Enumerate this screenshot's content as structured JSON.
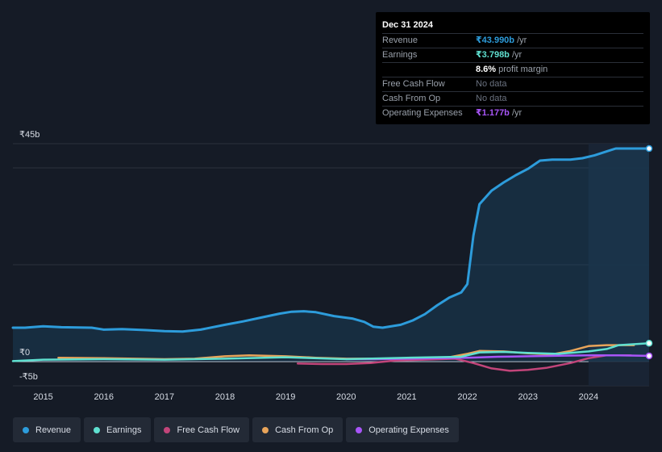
{
  "chart_data": {
    "type": "line",
    "currency_axis": {
      "top_label": "₹45b",
      "zero_label": "₹0",
      "bottom_label": "-₹5b",
      "ylim": [
        -5,
        45
      ]
    },
    "x_ticks": [
      "2015",
      "2016",
      "2017",
      "2018",
      "2019",
      "2020",
      "2021",
      "2022",
      "2023",
      "2024"
    ],
    "xlim": [
      2014.5,
      2025.0
    ],
    "forecast_start": 2024.0,
    "series": [
      {
        "name": "Revenue",
        "color": "#2d9cdb",
        "fill": true,
        "points": [
          [
            2014.5,
            7.0
          ],
          [
            2014.7,
            7.0
          ],
          [
            2015.0,
            7.3
          ],
          [
            2015.3,
            7.1
          ],
          [
            2015.8,
            7.0
          ],
          [
            2016.0,
            6.6
          ],
          [
            2016.3,
            6.7
          ],
          [
            2016.7,
            6.5
          ],
          [
            2017.0,
            6.3
          ],
          [
            2017.3,
            6.2
          ],
          [
            2017.6,
            6.6
          ],
          [
            2018.0,
            7.6
          ],
          [
            2018.3,
            8.3
          ],
          [
            2018.6,
            9.1
          ],
          [
            2018.9,
            9.9
          ],
          [
            2019.1,
            10.3
          ],
          [
            2019.3,
            10.4
          ],
          [
            2019.5,
            10.2
          ],
          [
            2019.8,
            9.4
          ],
          [
            2020.1,
            8.9
          ],
          [
            2020.3,
            8.2
          ],
          [
            2020.45,
            7.2
          ],
          [
            2020.6,
            7.0
          ],
          [
            2020.9,
            7.6
          ],
          [
            2021.1,
            8.5
          ],
          [
            2021.3,
            9.8
          ],
          [
            2021.5,
            11.6
          ],
          [
            2021.7,
            13.2
          ],
          [
            2021.9,
            14.3
          ],
          [
            2022.0,
            16.0
          ],
          [
            2022.1,
            26.0
          ],
          [
            2022.2,
            32.5
          ],
          [
            2022.4,
            35.3
          ],
          [
            2022.6,
            37.0
          ],
          [
            2022.8,
            38.5
          ],
          [
            2023.0,
            39.8
          ],
          [
            2023.2,
            41.5
          ],
          [
            2023.4,
            41.7
          ],
          [
            2023.7,
            41.7
          ],
          [
            2023.9,
            42.0
          ],
          [
            2024.1,
            42.6
          ],
          [
            2024.3,
            43.4
          ],
          [
            2024.45,
            44.0
          ],
          [
            2024.7,
            44.0
          ],
          [
            2025.0,
            44.0
          ]
        ],
        "end_value": 43.99
      },
      {
        "name": "Earnings",
        "color": "#5fe0d0",
        "fill": false,
        "points": [
          [
            2014.5,
            0.1
          ],
          [
            2015.0,
            0.4
          ],
          [
            2016.0,
            0.5
          ],
          [
            2017.0,
            0.4
          ],
          [
            2018.0,
            0.6
          ],
          [
            2019.0,
            0.9
          ],
          [
            2020.0,
            0.5
          ],
          [
            2021.0,
            0.8
          ],
          [
            2021.9,
            1.0
          ],
          [
            2022.2,
            1.9
          ],
          [
            2022.6,
            2.0
          ],
          [
            2023.0,
            1.8
          ],
          [
            2023.5,
            1.6
          ],
          [
            2024.0,
            2.1
          ],
          [
            2024.3,
            2.6
          ],
          [
            2024.5,
            3.4
          ],
          [
            2025.0,
            3.8
          ]
        ],
        "end_value": 3.798
      },
      {
        "name": "Free Cash Flow",
        "color": "#c2457a",
        "fill": false,
        "points": [
          [
            2019.2,
            -0.4
          ],
          [
            2019.6,
            -0.5
          ],
          [
            2020.0,
            -0.5
          ],
          [
            2020.4,
            -0.3
          ],
          [
            2020.8,
            0.2
          ],
          [
            2021.3,
            0.4
          ],
          [
            2021.8,
            0.6
          ],
          [
            2022.1,
            -0.3
          ],
          [
            2022.4,
            -1.4
          ],
          [
            2022.7,
            -1.9
          ],
          [
            2023.0,
            -1.7
          ],
          [
            2023.3,
            -1.3
          ],
          [
            2023.7,
            -0.3
          ],
          [
            2024.0,
            0.7
          ],
          [
            2024.3,
            1.3
          ],
          [
            2024.7,
            1.3
          ]
        ]
      },
      {
        "name": "Cash From Op",
        "color": "#e8a45a",
        "fill": false,
        "points": [
          [
            2015.25,
            0.8
          ],
          [
            2016.0,
            0.7
          ],
          [
            2017.0,
            0.5
          ],
          [
            2017.5,
            0.6
          ],
          [
            2018.0,
            1.1
          ],
          [
            2018.4,
            1.3
          ],
          [
            2019.0,
            1.1
          ],
          [
            2019.5,
            0.8
          ],
          [
            2020.0,
            0.6
          ],
          [
            2021.0,
            0.6
          ],
          [
            2021.7,
            0.9
          ],
          [
            2022.0,
            1.6
          ],
          [
            2022.2,
            2.2
          ],
          [
            2022.6,
            2.1
          ],
          [
            2023.0,
            1.7
          ],
          [
            2023.4,
            1.5
          ],
          [
            2023.7,
            2.2
          ],
          [
            2024.0,
            3.2
          ],
          [
            2024.3,
            3.4
          ],
          [
            2024.75,
            3.4
          ]
        ]
      },
      {
        "name": "Operating Expenses",
        "color": "#a855f7",
        "fill": false,
        "points": [
          [
            2020.0,
            0.5
          ],
          [
            2020.5,
            0.5
          ],
          [
            2021.0,
            0.6
          ],
          [
            2021.5,
            0.7
          ],
          [
            2022.0,
            0.8
          ],
          [
            2022.5,
            1.0
          ],
          [
            2023.0,
            1.1
          ],
          [
            2023.5,
            1.2
          ],
          [
            2024.0,
            1.3
          ],
          [
            2024.5,
            1.3
          ],
          [
            2025.0,
            1.18
          ]
        ],
        "end_value": 1.177
      }
    ]
  },
  "tooltip": {
    "date": "Dec 31 2024",
    "rows": [
      {
        "label": "Revenue",
        "value": "₹43.990b",
        "unit": " /yr",
        "color": "#2d9cdb"
      },
      {
        "label": "Earnings",
        "value": "₹3.798b",
        "unit": " /yr",
        "color": "#5fe0d0"
      },
      {
        "label": "",
        "value": "8.6%",
        "unit": " profit margin",
        "color": "#ffffff"
      },
      {
        "label": "Free Cash Flow",
        "value": "No data",
        "unit": "",
        "color": ""
      },
      {
        "label": "Cash From Op",
        "value": "No data",
        "unit": "",
        "color": ""
      },
      {
        "label": "Operating Expenses",
        "value": "₹1.177b",
        "unit": " /yr",
        "color": "#a855f7"
      }
    ]
  },
  "legend": [
    {
      "label": "Revenue",
      "color": "#2d9cdb"
    },
    {
      "label": "Earnings",
      "color": "#5fe0d0"
    },
    {
      "label": "Free Cash Flow",
      "color": "#c2457a"
    },
    {
      "label": "Cash From Op",
      "color": "#e8a45a"
    },
    {
      "label": "Operating Expenses",
      "color": "#a855f7"
    }
  ]
}
